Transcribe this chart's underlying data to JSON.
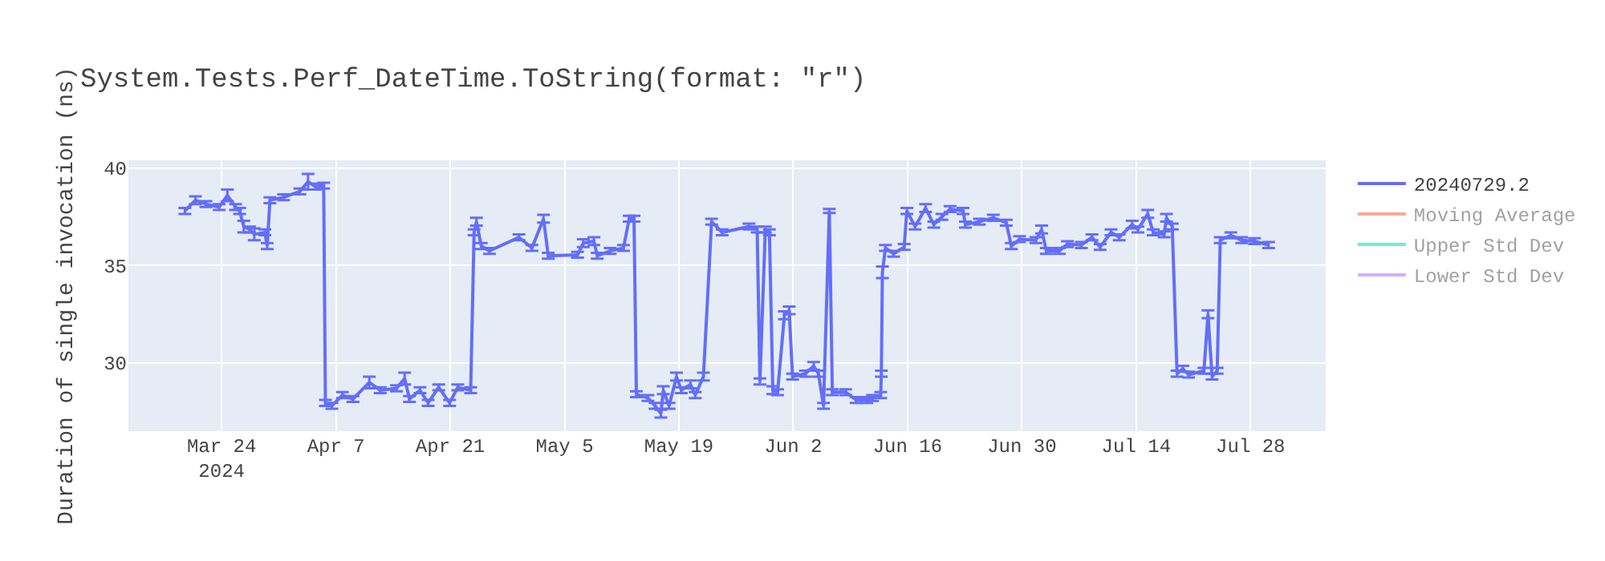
{
  "chart_data": {
    "type": "line",
    "title": "System.Tests.Perf_DateTime.ToString(format: \"r\")",
    "ylabel": "Duration of single invocation (ns)",
    "x": [
      "2024-03-19T12:00",
      "2024-03-20T19:00",
      "2024-03-22T02:00",
      "2024-03-23T17:00",
      "2024-03-24T17:00",
      "2024-03-25T17:00",
      "2024-03-26T05:00",
      "2024-03-26T17:00",
      "2024-03-27T10:00",
      "2024-03-28T00:00",
      "2024-03-29T07:00",
      "2024-03-29T14:00",
      "2024-03-29T22:00",
      "2024-03-31T14:00",
      "2024-04-02T14:00",
      "2024-04-03T14:00",
      "2024-04-04T12:00",
      "2024-04-05T12:00",
      "2024-04-05T17:00",
      "2024-04-06T12:00",
      "2024-04-07T19:00",
      "2024-04-09T02:00",
      "2024-04-11T02:00",
      "2024-04-12T10:00",
      "2024-04-14T10:00",
      "2024-04-15T10:00",
      "2024-04-16T00:00",
      "2024-04-17T07:00",
      "2024-04-18T07:00",
      "2024-04-19T14:00",
      "2024-04-20T22:00",
      "2024-04-21T22:00",
      "2024-04-23T12:00",
      "2024-04-23T22:00",
      "2024-04-24T05:00",
      "2024-04-24T19:00",
      "2024-04-25T19:00",
      "2024-04-29T10:00",
      "2024-05-01T00:00",
      "2024-05-02T10:00",
      "2024-05-03T00:00",
      "2024-05-06T14:00",
      "2024-05-07T07:00",
      "2024-05-08T14:00",
      "2024-05-09T00:00",
      "2024-05-10T14:00",
      "2024-05-12T05:00",
      "2024-05-12T22:00",
      "2024-05-13T12:00",
      "2024-05-13T19:00",
      "2024-05-15T05:00",
      "2024-05-16T02:00",
      "2024-05-16T19:00",
      "2024-05-17T02:00",
      "2024-05-17T19:00",
      "2024-05-18T17:00",
      "2024-05-19T07:00",
      "2024-05-20T10:00",
      "2024-05-21T00:00",
      "2024-05-22T00:00",
      "2024-05-23T00:00",
      "2024-05-24T07:00",
      "2024-05-27T14:00",
      "2024-05-28T14:00",
      "2024-05-28T22:00",
      "2024-05-29T14:00",
      "2024-05-30T02:00",
      "2024-05-30T12:00",
      "2024-05-31T02:00",
      "2024-05-31T22:00",
      "2024-06-01T12:00",
      "2024-06-01T22:00",
      "2024-06-03T12:00",
      "2024-06-04T12:00",
      "2024-06-05T02:00",
      "2024-06-05T17:00",
      "2024-06-06T10:00",
      "2024-06-06T19:00",
      "2024-06-08T10:00",
      "2024-06-09T17:00",
      "2024-06-11T00:00",
      "2024-06-11T17:00",
      "2024-06-12T17:00",
      "2024-06-12T19:00",
      "2024-06-12T22:00",
      "2024-06-13T07:00",
      "2024-06-14T07:00",
      "2024-06-15T14:00",
      "2024-06-15T22:00",
      "2024-06-16T22:00",
      "2024-06-18T05:00",
      "2024-06-19T05:00",
      "2024-06-20T05:00",
      "2024-06-21T05:00",
      "2024-06-22T19:00",
      "2024-06-23T02:00",
      "2024-06-24T19:00",
      "2024-06-26T12:00",
      "2024-06-28T02:00",
      "2024-06-28T17:00",
      "2024-06-29T17:00",
      "2024-07-01T17:00",
      "2024-07-02T10:00",
      "2024-07-03T00:00",
      "2024-07-04T14:00",
      "2024-07-05T14:00",
      "2024-07-07T07:00",
      "2024-07-08T14:00",
      "2024-07-09T14:00",
      "2024-07-10T22:00",
      "2024-07-11T22:00",
      "2024-07-13T12:00",
      "2024-07-14T05:00",
      "2024-07-15T10:00",
      "2024-07-16T02:00",
      "2024-07-17T10:00",
      "2024-07-17T17:00",
      "2024-07-18T10:00",
      "2024-07-19T00:00",
      "2024-07-19T17:00",
      "2024-07-20T10:00",
      "2024-07-22T07:00",
      "2024-07-22T19:00",
      "2024-07-23T07:00",
      "2024-07-23T22:00",
      "2024-07-24T07:00",
      "2024-07-25T14:00",
      "2024-07-26T22:00",
      "2024-07-28T12:00",
      "2024-07-30T05:00"
    ],
    "series": [
      {
        "name": "20240729.2",
        "color": "#636efa",
        "values": [
          37.8,
          38.35,
          38.15,
          38.0,
          38.6,
          38.0,
          37.8,
          37.0,
          36.85,
          36.6,
          36.7,
          36.0,
          38.35,
          38.5,
          38.8,
          39.3,
          39.05,
          39.1,
          27.95,
          27.8,
          28.35,
          28.15,
          29.0,
          28.6,
          28.7,
          29.2,
          28.15,
          28.6,
          27.95,
          28.75,
          27.95,
          28.75,
          28.6,
          36.7,
          37.25,
          36.0,
          35.75,
          36.45,
          35.9,
          37.4,
          35.5,
          35.55,
          36.15,
          36.25,
          35.5,
          35.75,
          35.9,
          37.4,
          37.4,
          28.4,
          28.2,
          27.8,
          27.4,
          28.6,
          27.8,
          29.3,
          28.6,
          28.9,
          28.35,
          29.3,
          37.25,
          36.7,
          37.0,
          36.85,
          29.05,
          36.85,
          36.7,
          28.6,
          28.5,
          32.45,
          32.7,
          29.3,
          29.45,
          29.85,
          29.45,
          27.8,
          37.8,
          28.5,
          28.5,
          28.1,
          28.1,
          28.2,
          28.35,
          29.45,
          34.65,
          35.9,
          35.6,
          35.95,
          37.8,
          37.0,
          37.95,
          37.1,
          37.5,
          37.9,
          37.8,
          37.1,
          37.25,
          37.45,
          37.2,
          36.0,
          36.35,
          36.3,
          36.85,
          35.75,
          35.75,
          36.1,
          36.05,
          36.45,
          35.95,
          36.7,
          36.45,
          37.1,
          36.85,
          37.65,
          36.7,
          36.6,
          37.45,
          37.0,
          29.45,
          29.7,
          29.4,
          29.6,
          32.5,
          29.3,
          29.6,
          36.3,
          36.55,
          36.3,
          36.25,
          36.05
        ],
        "errors": [
          0.15,
          0.2,
          0.15,
          0.15,
          0.3,
          0.15,
          0.15,
          0.3,
          0.15,
          0.3,
          0.15,
          0.15,
          0.15,
          0.15,
          0.15,
          0.4,
          0.15,
          0.15,
          0.15,
          0.15,
          0.15,
          0.15,
          0.3,
          0.15,
          0.15,
          0.3,
          0.15,
          0.15,
          0.15,
          0.15,
          0.15,
          0.15,
          0.15,
          0.15,
          0.2,
          0.15,
          0.15,
          0.15,
          0.15,
          0.2,
          0.15,
          0.15,
          0.2,
          0.2,
          0.15,
          0.15,
          0.15,
          0.15,
          0.15,
          0.15,
          0.15,
          0.15,
          0.2,
          0.2,
          0.15,
          0.2,
          0.15,
          0.2,
          0.15,
          0.2,
          0.15,
          0.15,
          0.15,
          0.15,
          0.15,
          0.15,
          0.15,
          0.2,
          0.15,
          0.2,
          0.2,
          0.15,
          0.15,
          0.2,
          0.15,
          0.15,
          0.1,
          0.15,
          0.15,
          0.15,
          0.15,
          0.15,
          0.15,
          0.15,
          0.3,
          0.15,
          0.15,
          0.15,
          0.15,
          0.15,
          0.2,
          0.15,
          0.15,
          0.15,
          0.15,
          0.15,
          0.15,
          0.15,
          0.15,
          0.15,
          0.15,
          0.15,
          0.2,
          0.15,
          0.15,
          0.15,
          0.15,
          0.15,
          0.15,
          0.15,
          0.15,
          0.2,
          0.15,
          0.2,
          0.15,
          0.15,
          0.2,
          0.15,
          0.15,
          0.15,
          0.15,
          0.15,
          0.2,
          0.15,
          0.15,
          0.15,
          0.15,
          0.15,
          0.15,
          0.15
        ]
      },
      {
        "name": "Moving Average",
        "color": "#ef553b",
        "values": [
          null,
          null,
          null,
          null,
          null,
          null,
          null,
          null,
          null,
          null,
          null,
          null,
          null,
          null,
          null,
          null,
          null,
          null,
          null,
          null,
          null,
          null,
          null,
          null,
          null,
          null,
          null,
          null,
          null,
          null,
          null,
          null,
          null,
          null,
          null,
          null,
          null,
          null,
          null,
          null,
          null,
          null,
          null,
          null,
          null,
          null,
          null,
          null,
          null,
          null,
          null,
          null,
          null,
          null,
          null,
          null,
          null,
          null,
          null,
          null,
          null,
          null,
          null,
          null,
          null,
          null,
          null,
          null,
          null,
          null,
          null,
          null,
          null,
          null,
          null,
          null,
          null,
          null,
          null,
          null,
          null,
          null,
          null,
          null,
          null,
          null,
          null,
          null,
          null,
          null,
          null,
          null,
          null,
          null,
          null,
          null,
          null,
          null,
          null,
          null,
          null,
          null,
          null,
          null,
          null,
          null,
          null,
          null,
          null,
          null,
          null,
          null,
          null,
          null,
          null,
          null,
          null,
          null,
          null,
          null,
          null,
          null,
          null,
          null,
          null,
          null,
          null,
          null,
          null,
          null
        ]
      },
      {
        "name": "Upper Std Dev",
        "color": "#00cc96",
        "values": [
          null,
          null,
          null,
          null,
          null,
          null,
          null,
          null,
          null,
          null,
          null,
          null,
          null,
          null,
          null,
          null,
          null,
          null,
          null,
          null,
          null,
          null,
          null,
          null,
          null,
          null,
          null,
          null,
          null,
          null,
          null,
          null,
          null,
          null,
          null,
          null,
          null,
          null,
          null,
          null,
          null,
          null,
          null,
          null,
          null,
          null,
          null,
          null,
          null,
          null,
          null,
          null,
          null,
          null,
          null,
          null,
          null,
          null,
          null,
          null,
          null,
          null,
          null,
          null,
          null,
          null,
          null,
          null,
          null,
          null,
          null,
          null,
          null,
          null,
          null,
          null,
          null,
          null,
          null,
          null,
          null,
          null,
          null,
          null,
          null,
          null,
          null,
          null,
          null,
          null,
          null,
          null,
          null,
          null,
          null,
          null,
          null,
          null,
          null,
          null,
          null,
          null,
          null,
          null,
          null,
          null,
          null,
          null,
          null,
          null,
          null,
          null,
          null,
          null,
          null,
          null,
          null,
          null,
          null,
          null,
          null,
          null,
          null,
          null,
          null,
          null,
          null,
          null,
          null,
          null
        ]
      },
      {
        "name": "Lower Std Dev",
        "color": "#ab63fa",
        "values": [
          null,
          null,
          null,
          null,
          null,
          null,
          null,
          null,
          null,
          null,
          null,
          null,
          null,
          null,
          null,
          null,
          null,
          null,
          null,
          null,
          null,
          null,
          null,
          null,
          null,
          null,
          null,
          null,
          null,
          null,
          null,
          null,
          null,
          null,
          null,
          null,
          null,
          null,
          null,
          null,
          null,
          null,
          null,
          null,
          null,
          null,
          null,
          null,
          null,
          null,
          null,
          null,
          null,
          null,
          null,
          null,
          null,
          null,
          null,
          null,
          null,
          null,
          null,
          null,
          null,
          null,
          null,
          null,
          null,
          null,
          null,
          null,
          null,
          null,
          null,
          null,
          null,
          null,
          null,
          null,
          null,
          null,
          null,
          null,
          null,
          null,
          null,
          null,
          null,
          null,
          null,
          null,
          null,
          null,
          null,
          null,
          null,
          null,
          null,
          null,
          null,
          null,
          null,
          null,
          null,
          null,
          null,
          null,
          null,
          null,
          null,
          null,
          null,
          null,
          null,
          null,
          null,
          null,
          null,
          null,
          null,
          null,
          null,
          null,
          null,
          null,
          null,
          null,
          null,
          null
        ]
      }
    ],
    "xlim": [
      "2024-03-12T14:00",
      "2024-08-06T05:00"
    ],
    "xticks": [
      {
        "value": "2024-03-24",
        "label": "Mar 24\n2024"
      },
      {
        "value": "2024-04-07",
        "label": "Apr 7"
      },
      {
        "value": "2024-04-21",
        "label": "Apr 21"
      },
      {
        "value": "2024-05-05",
        "label": "May 5"
      },
      {
        "value": "2024-05-19",
        "label": "May 19"
      },
      {
        "value": "2024-06-02",
        "label": "Jun 2"
      },
      {
        "value": "2024-06-16",
        "label": "Jun 16"
      },
      {
        "value": "2024-06-30",
        "label": "Jun 30"
      },
      {
        "value": "2024-07-14",
        "label": "Jul 14"
      },
      {
        "value": "2024-07-28",
        "label": "Jul 28"
      }
    ],
    "ylim": [
      26.5,
      40.4
    ],
    "yticks": [
      30,
      35,
      40
    ],
    "grid": true,
    "legend": "top right",
    "marker": "none",
    "line_style": "solid"
  }
}
